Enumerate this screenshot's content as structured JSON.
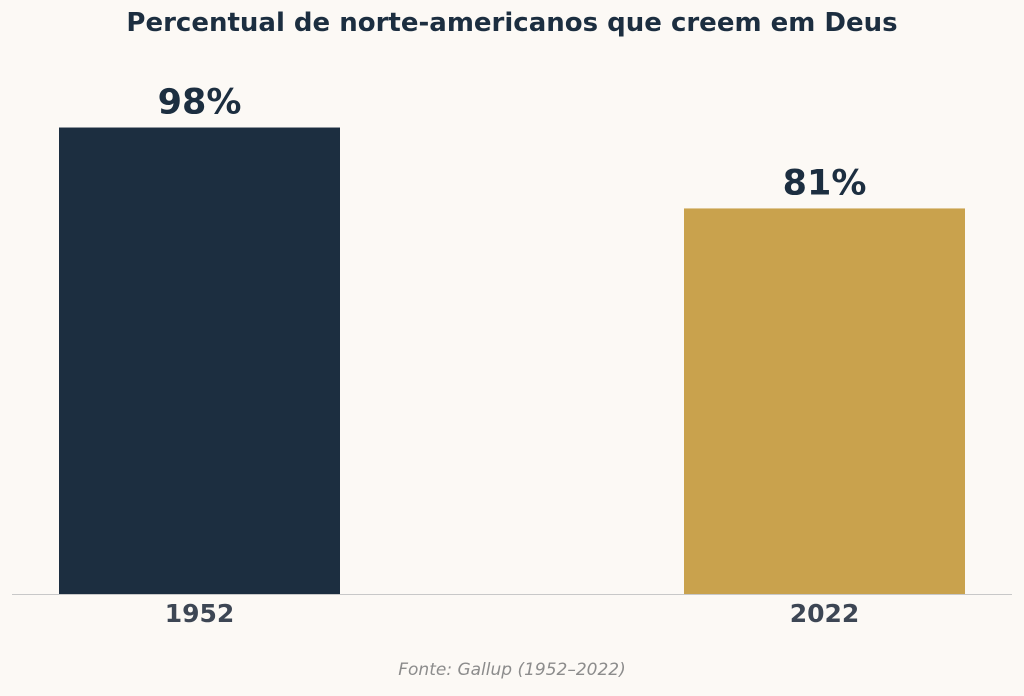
{
  "chart_data": {
    "type": "bar",
    "title": "Percentual de norte-americanos que creem em Deus",
    "categories": [
      "1952",
      "2022"
    ],
    "values": [
      98,
      81
    ],
    "value_labels": [
      "98%",
      "81%"
    ],
    "colors": [
      "#1c2e40",
      "#c9a24d"
    ],
    "ylim": [
      0,
      100
    ],
    "xlabel": "",
    "ylabel": "",
    "grid": false,
    "legend": "none"
  },
  "source_note": "Fonte: Gallup (1952–2022)",
  "colors": {
    "background": "#fcf9f5",
    "title_text": "#1c2e40",
    "value_label_text": "#1c2e40",
    "tick_label_text": "#3d4654",
    "source_text": "#8c8c8c",
    "baseline": "#c8c8c8"
  }
}
